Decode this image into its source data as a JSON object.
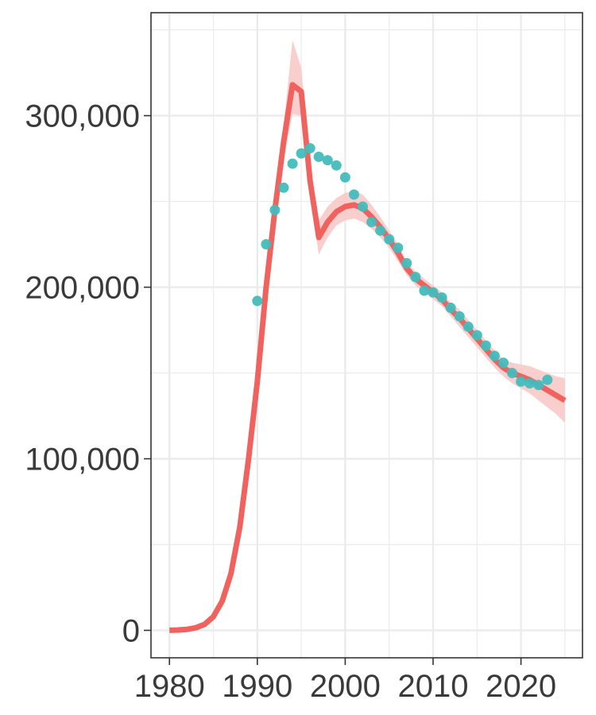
{
  "chart_data": {
    "type": "line",
    "title": "",
    "xlabel": "",
    "ylabel": "",
    "xlim": [
      1977.9,
      2027.0
    ],
    "ylim": [
      -16000,
      360000
    ],
    "x_ticks": [
      1980,
      1990,
      2000,
      2010,
      2020
    ],
    "x_tick_labels": [
      "1980",
      "1990",
      "2000",
      "2010",
      "2020"
    ],
    "y_ticks": [
      0,
      100000,
      200000,
      300000
    ],
    "y_tick_labels": [
      "0",
      "100,000",
      "200,000",
      "300,000"
    ],
    "grid": true,
    "legend": "none",
    "colors": {
      "line": "#f0625e",
      "band": "#f8c7c6",
      "points": "#43bcbc",
      "grid": "#ebebeb",
      "panel_border": "#333333"
    },
    "series": [
      {
        "type": "line",
        "x": [
          1980,
          1981,
          1982,
          1983,
          1984,
          1985,
          1986,
          1987,
          1988,
          1989,
          1990,
          1991,
          1992,
          1993,
          1994,
          1995,
          1996,
          1997,
          1998,
          1999,
          2000,
          2001,
          2002,
          2003,
          2004,
          2005,
          2006,
          2007,
          2008,
          2009,
          2010,
          2011,
          2012,
          2013,
          2014,
          2015,
          2016,
          2017,
          2018,
          2019,
          2020,
          2021,
          2022,
          2023,
          2024,
          2025
        ],
        "y": [
          0,
          200,
          600,
          1500,
          3500,
          8000,
          17000,
          33000,
          60000,
          100000,
          145000,
          200000,
          245000,
          285000,
          318000,
          314000,
          262000,
          229000,
          238000,
          244000,
          247000,
          248000,
          246000,
          241000,
          235000,
          228000,
          220000,
          211000,
          205000,
          201000,
          197000,
          193000,
          187000,
          182000,
          176000,
          170000,
          164000,
          158000,
          153000,
          150000,
          148000,
          146000,
          143000,
          140000,
          137000,
          134000
        ],
        "band_lower": [
          0,
          100,
          400,
          1200,
          3000,
          7000,
          15000,
          30000,
          56000,
          95000,
          140000,
          194000,
          238000,
          275000,
          301000,
          300000,
          252000,
          219000,
          229000,
          236000,
          239000,
          240000,
          238000,
          234000,
          229000,
          223000,
          215000,
          207000,
          201000,
          197000,
          193000,
          189000,
          183000,
          177000,
          171000,
          165000,
          159000,
          153000,
          148000,
          144000,
          141000,
          138000,
          134000,
          130000,
          126000,
          121000
        ],
        "band_upper": [
          0,
          300,
          800,
          1800,
          4000,
          9000,
          19000,
          36000,
          64000,
          105000,
          150000,
          206000,
          252000,
          295000,
          344000,
          328000,
          272000,
          239000,
          247000,
          252000,
          255000,
          256000,
          254000,
          248000,
          241000,
          233000,
          225000,
          215000,
          209000,
          205000,
          201000,
          197000,
          191000,
          187000,
          181000,
          175000,
          169000,
          163000,
          158000,
          156000,
          155000,
          154000,
          152000,
          150000,
          148000,
          147000
        ]
      },
      {
        "type": "scatter",
        "x": [
          1990,
          1991,
          1992,
          1993,
          1994,
          1995,
          1996,
          1997,
          1998,
          1999,
          2000,
          2001,
          2002,
          2003,
          2004,
          2005,
          2006,
          2007,
          2008,
          2009,
          2010,
          2011,
          2012,
          2013,
          2014,
          2015,
          2016,
          2017,
          2018,
          2019,
          2020,
          2021,
          2022,
          2023
        ],
        "y": [
          192000,
          225000,
          245000,
          258000,
          272000,
          278000,
          281000,
          276000,
          274000,
          271000,
          264000,
          254000,
          247000,
          238000,
          233000,
          228000,
          223000,
          214000,
          206000,
          198000,
          197000,
          194000,
          188000,
          183000,
          177000,
          172000,
          166000,
          160000,
          156000,
          150000,
          145000,
          144000,
          143000,
          146000
        ]
      }
    ]
  }
}
